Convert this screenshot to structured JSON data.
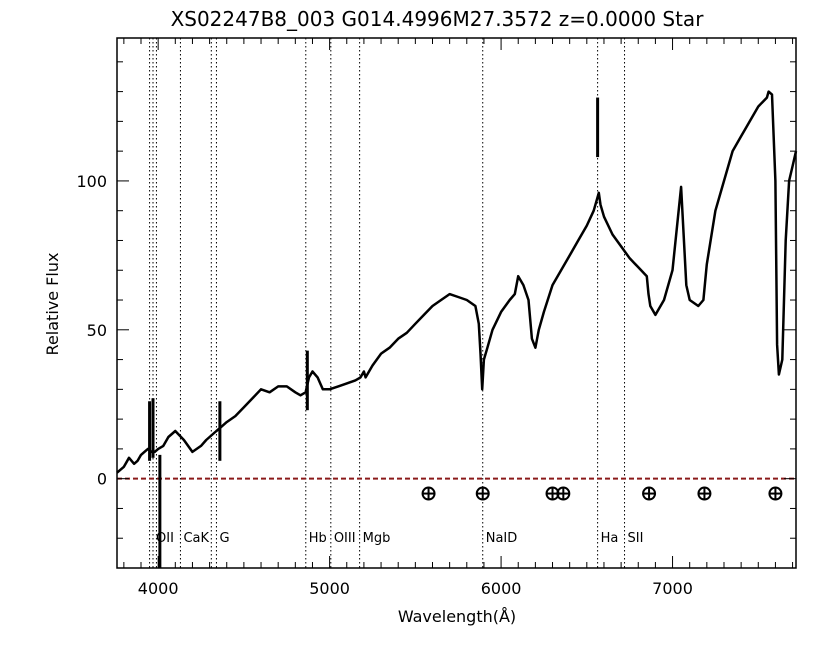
{
  "chart_data": {
    "type": "line",
    "title": "XS02247B8_003  G014.4996M27.3572  z=0.0000   Star",
    "xlabel": "Wavelength(Å)",
    "ylabel": "Relative Flux",
    "xlim": [
      3760,
      7720
    ],
    "ylim": [
      -30,
      148
    ],
    "x_ticks": [
      4000,
      5000,
      6000,
      7000
    ],
    "y_ticks": [
      0,
      50,
      100
    ],
    "x_tick_labels": [
      "4000",
      "5000",
      "6000",
      "7000"
    ],
    "y_tick_labels": [
      "0",
      "50",
      "100"
    ],
    "grid": false,
    "zero_line": {
      "y": 0,
      "color": "#8b1a1a"
    },
    "series": [
      {
        "color": "#000000",
        "x": [
          3760,
          3800,
          3830,
          3860,
          3880,
          3900,
          3920,
          3940,
          3960,
          3980,
          4000,
          4030,
          4060,
          4100,
          4150,
          4200,
          4250,
          4280,
          4300,
          4340,
          4360,
          4400,
          4450,
          4500,
          4550,
          4600,
          4650,
          4700,
          4750,
          4800,
          4830,
          4860,
          4880,
          4900,
          4930,
          4960,
          5000,
          5050,
          5100,
          5150,
          5180,
          5200,
          5210,
          5250,
          5300,
          5350,
          5400,
          5450,
          5500,
          5550,
          5600,
          5650,
          5700,
          5750,
          5800,
          5850,
          5870,
          5880,
          5890,
          5900,
          5920,
          5950,
          6000,
          6050,
          6080,
          6100,
          6130,
          6160,
          6180,
          6200,
          6220,
          6250,
          6300,
          6350,
          6400,
          6450,
          6500,
          6540,
          6560,
          6570,
          6580,
          6600,
          6650,
          6700,
          6750,
          6800,
          6850,
          6860,
          6870,
          6900,
          6950,
          7000,
          7050,
          7080,
          7100,
          7150,
          7180,
          7200,
          7250,
          7300,
          7350,
          7400,
          7450,
          7500,
          7550,
          7560,
          7580,
          7600,
          7610,
          7620,
          7640,
          7660,
          7680,
          7700,
          7720
        ],
        "y": [
          2,
          4,
          7,
          5,
          6,
          8,
          9,
          10,
          9,
          9,
          10,
          11,
          14,
          16,
          13,
          9,
          11,
          13,
          14,
          16,
          17,
          19,
          21,
          24,
          27,
          30,
          29,
          31,
          31,
          29,
          28,
          29,
          34,
          36,
          34,
          30,
          30,
          31,
          32,
          33,
          34,
          36,
          34,
          38,
          42,
          44,
          47,
          49,
          52,
          55,
          58,
          60,
          62,
          61,
          60,
          58,
          52,
          42,
          30,
          40,
          44,
          50,
          56,
          60,
          62,
          68,
          65,
          60,
          47,
          44,
          50,
          56,
          65,
          70,
          75,
          80,
          85,
          90,
          94,
          96,
          92,
          88,
          82,
          78,
          74,
          71,
          68,
          62,
          58,
          55,
          60,
          70,
          98,
          65,
          60,
          58,
          60,
          72,
          90,
          100,
          110,
          115,
          120,
          125,
          128,
          130,
          129,
          100,
          45,
          35,
          40,
          80,
          100,
          105,
          110
        ]
      }
    ],
    "spikes": [
      {
        "x": 3950,
        "y": 26
      },
      {
        "x": 3970,
        "y": 27
      },
      {
        "x": 4010,
        "y": -30
      },
      {
        "x": 4360,
        "y": 26
      },
      {
        "x": 4870,
        "y": 43
      },
      {
        "x": 6563,
        "y": 128
      }
    ],
    "line_markers": [
      {
        "x": 3950,
        "label": ""
      },
      {
        "x": 3970,
        "label": "OII"
      },
      {
        "x": 3990,
        "label": ""
      },
      {
        "x": 4130,
        "label": "CaK"
      },
      {
        "x": 4310,
        "label": ""
      },
      {
        "x": 4340,
        "label": "G"
      },
      {
        "x": 4861,
        "label": "Hb"
      },
      {
        "x": 5007,
        "label": "OIII"
      },
      {
        "x": 5175,
        "label": "Mgb"
      },
      {
        "x": 5893,
        "label": "NaID"
      },
      {
        "x": 6563,
        "label": "Ha"
      },
      {
        "x": 6720,
        "label": "SII"
      }
    ],
    "telluric_markers": [
      5577,
      5893,
      6300,
      6363,
      6863,
      7186,
      7600
    ],
    "telluric_y": -5
  }
}
